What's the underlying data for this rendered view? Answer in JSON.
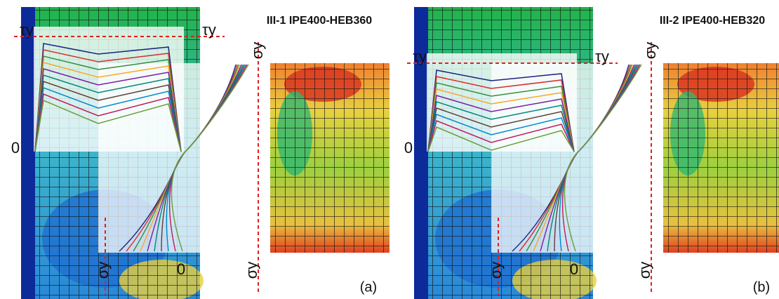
{
  "panels": [
    {
      "title": "III-1 IPE400-HEB360",
      "tau_labels": [
        "τy",
        "τy"
      ],
      "sigma_labels": [
        "σy",
        "σy",
        "σy"
      ],
      "zero_labels": [
        "0",
        "0"
      ],
      "caption": "(a)"
    },
    {
      "title": "III-2 IPE400-HEB320",
      "tau_labels": [
        "τy",
        "τy"
      ],
      "sigma_labels": [
        "σy",
        "σy",
        "σy"
      ],
      "zero_labels": [
        "0",
        "0"
      ],
      "caption": "(b)"
    }
  ]
}
